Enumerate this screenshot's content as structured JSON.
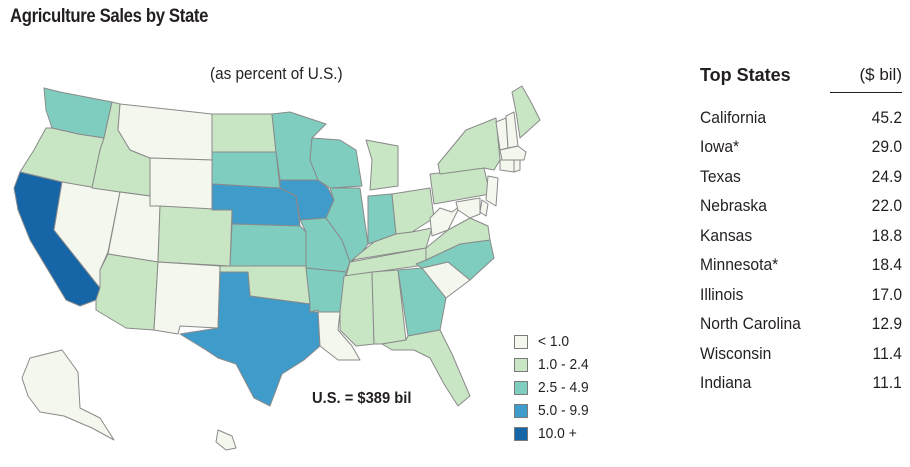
{
  "title": "Agriculture Sales by State",
  "subtitle": "(as percent of U.S.)",
  "total": "U.S. = $389 bil",
  "legend": [
    {
      "label": "< 1.0",
      "color": "#f4f7ee"
    },
    {
      "label": "1.0 - 2.4",
      "color": "#c8e5c4"
    },
    {
      "label": "2.5 - 4.9",
      "color": "#7ecdbf"
    },
    {
      "label": "5.0 - 9.9",
      "color": "#3f9bc9"
    },
    {
      "label": "10.0 +",
      "color": "#1565a7"
    }
  ],
  "table": {
    "header_label": "Top States",
    "header_unit": "($ bil)",
    "rows": [
      {
        "state": "California",
        "value": "45.2"
      },
      {
        "state": "Iowa*",
        "value": "29.0"
      },
      {
        "state": "Texas",
        "value": "24.9"
      },
      {
        "state": "Nebraska",
        "value": "22.0"
      },
      {
        "state": "Kansas",
        "value": "18.8"
      },
      {
        "state": "Minnesota*",
        "value": "18.4"
      },
      {
        "state": "Illinois",
        "value": "17.0"
      },
      {
        "state": "North Carolina",
        "value": "12.9"
      },
      {
        "state": "Wisconsin",
        "value": "11.4"
      },
      {
        "state": "Indiana",
        "value": "11.1"
      }
    ]
  },
  "state_classes": {
    "California": 4,
    "Iowa": 3,
    "Texas": 3,
    "Nebraska": 3,
    "Washington": 2,
    "Minnesota": 2,
    "South Dakota": 2,
    "Kansas": 2,
    "Wisconsin": 2,
    "Illinois": 2,
    "Indiana": 2,
    "Missouri": 2,
    "Arkansas": 2,
    "North Carolina": 2,
    "Georgia": 2,
    "Oregon": 1,
    "Idaho": 1,
    "North Dakota": 1,
    "Colorado": 1,
    "Arizona": 1,
    "Oklahoma": 1,
    "Michigan": 1,
    "Ohio": 1,
    "Kentucky": 1,
    "Tennessee": 1,
    "Mississippi": 1,
    "Alabama": 1,
    "Florida": 1,
    "Virginia": 1,
    "Pennsylvania": 1,
    "New York": 1,
    "Nevada": 0,
    "Utah": 0,
    "Montana": 0,
    "Wyoming": 0,
    "New Mexico": 0,
    "Louisiana": 0,
    "South Carolina": 0,
    "West Virginia": 0,
    "Maine": 1,
    "Vermont": 0,
    "New Hampshire": 0,
    "Massachusetts": 0,
    "Connecticut": 0,
    "Rhode Island": 0,
    "New Jersey": 0,
    "Delaware": 0,
    "Maryland": 0,
    "Alaska": 0,
    "Hawaii": 0
  }
}
